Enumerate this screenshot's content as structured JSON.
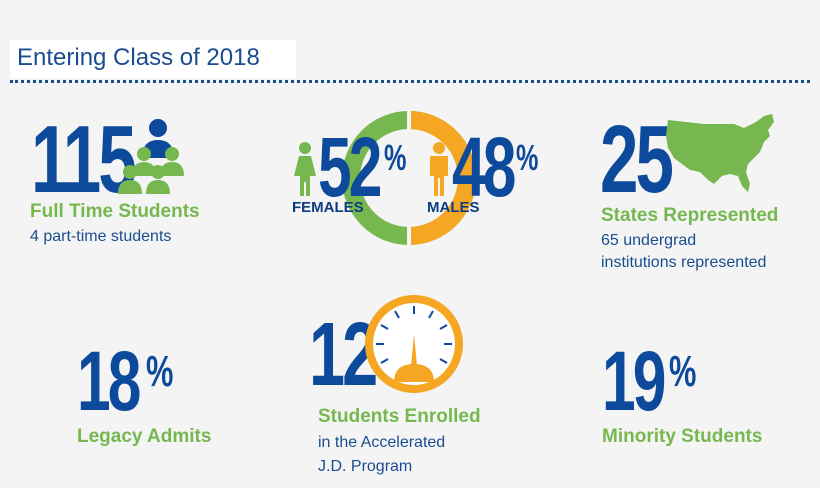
{
  "header": {
    "title": "Entering Class of 2018"
  },
  "stats": {
    "full_time": {
      "number": "115",
      "label": "Full Time Students",
      "sub": "4 part-time students"
    },
    "gender": {
      "female_pct": "52",
      "female_label": "FEMALES",
      "male_pct": "48",
      "male_label": "MALES",
      "pct_sign": "%"
    },
    "states": {
      "number": "25",
      "label": "States Represented",
      "sub_line1": "65 undergrad",
      "sub_line2": "institutions represented"
    },
    "legacy": {
      "number": "18",
      "pct_sign": "%",
      "label": "Legacy Admits"
    },
    "accelerated": {
      "number": "12",
      "label": "Students Enrolled",
      "sub_line1": "in the Accelerated",
      "sub_line2": "J.D. Program"
    },
    "minority": {
      "number": "19",
      "pct_sign": "%",
      "label": "Minority Students"
    }
  },
  "colors": {
    "blue": "#0d4a9c",
    "green": "#76b84f",
    "orange": "#f5a623"
  },
  "icons": [
    "group-icon",
    "female-icon",
    "male-icon",
    "usa-map-icon",
    "gauge-icon"
  ]
}
